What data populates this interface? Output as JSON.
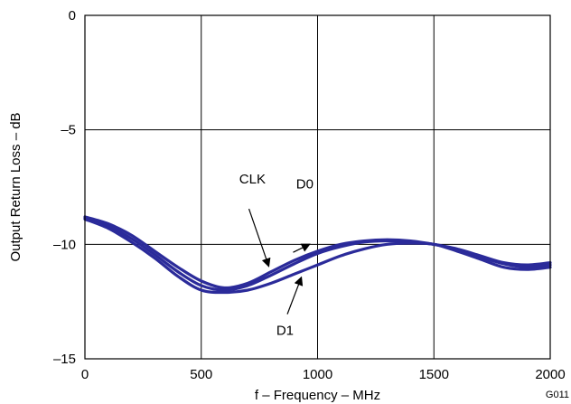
{
  "chart_data": {
    "type": "line",
    "xlabel": "f – Frequency – MHz",
    "ylabel": "Output Return Loss – dB",
    "figure_code": "G011",
    "xlim": [
      0,
      2000
    ],
    "ylim": [
      -15,
      0
    ],
    "xticks": [
      0,
      500,
      1000,
      1500,
      2000
    ],
    "xtick_labels": [
      "0",
      "500",
      "1000",
      "1500",
      "2000"
    ],
    "yticks": [
      0,
      -5,
      -10,
      -15
    ],
    "ytick_labels": [
      "0",
      "–5",
      "–10",
      "–15"
    ],
    "grid": true,
    "line_color": "#2b2b9a",
    "series": [
      {
        "name": "CLK",
        "x": [
          0,
          100,
          200,
          300,
          400,
          500,
          600,
          700,
          800,
          900,
          1000,
          1100,
          1200,
          1300,
          1400,
          1500,
          1600,
          1700,
          1800,
          1900,
          2000
        ],
        "y": [
          -8.8,
          -9.1,
          -9.6,
          -10.3,
          -11.0,
          -11.6,
          -11.9,
          -11.7,
          -11.2,
          -10.7,
          -10.3,
          -10.0,
          -9.85,
          -9.8,
          -9.85,
          -10.0,
          -10.2,
          -10.5,
          -10.8,
          -10.9,
          -10.8
        ]
      },
      {
        "name": "D0",
        "x": [
          0,
          100,
          200,
          300,
          400,
          500,
          600,
          700,
          800,
          900,
          1000,
          1100,
          1200,
          1300,
          1400,
          1500,
          1600,
          1700,
          1800,
          1900,
          2000
        ],
        "y": [
          -8.85,
          -9.2,
          -9.75,
          -10.45,
          -11.2,
          -11.8,
          -12.0,
          -11.8,
          -11.35,
          -10.85,
          -10.4,
          -10.1,
          -9.9,
          -9.85,
          -9.9,
          -10.0,
          -10.25,
          -10.55,
          -10.85,
          -11.0,
          -10.9
        ]
      },
      {
        "name": "D1",
        "x": [
          0,
          100,
          200,
          300,
          400,
          500,
          600,
          700,
          800,
          900,
          1000,
          1100,
          1200,
          1300,
          1400,
          1500,
          1600,
          1700,
          1800,
          1900,
          2000
        ],
        "y": [
          -8.9,
          -9.3,
          -9.9,
          -10.6,
          -11.4,
          -12.0,
          -12.1,
          -12.0,
          -11.7,
          -11.3,
          -10.9,
          -10.5,
          -10.2,
          -10.0,
          -9.95,
          -10.0,
          -10.3,
          -10.65,
          -11.0,
          -11.1,
          -11.0
        ]
      }
    ],
    "annotations": [
      {
        "label": "CLK",
        "text_x": 720,
        "text_y": -7.35,
        "arrow_from_x": 705,
        "arrow_from_y": -8.45,
        "arrow_to_x": 790,
        "arrow_to_y": -10.95
      },
      {
        "label": "D0",
        "text_x": 945,
        "text_y": -7.55,
        "arrow_from_x": 895,
        "arrow_from_y": -10.35,
        "arrow_to_x": 965,
        "arrow_to_y": -10.0
      },
      {
        "label": "D1",
        "text_x": 860,
        "text_y": -13.95,
        "arrow_from_x": 870,
        "arrow_from_y": -13.05,
        "arrow_to_x": 930,
        "arrow_to_y": -11.45
      }
    ]
  }
}
